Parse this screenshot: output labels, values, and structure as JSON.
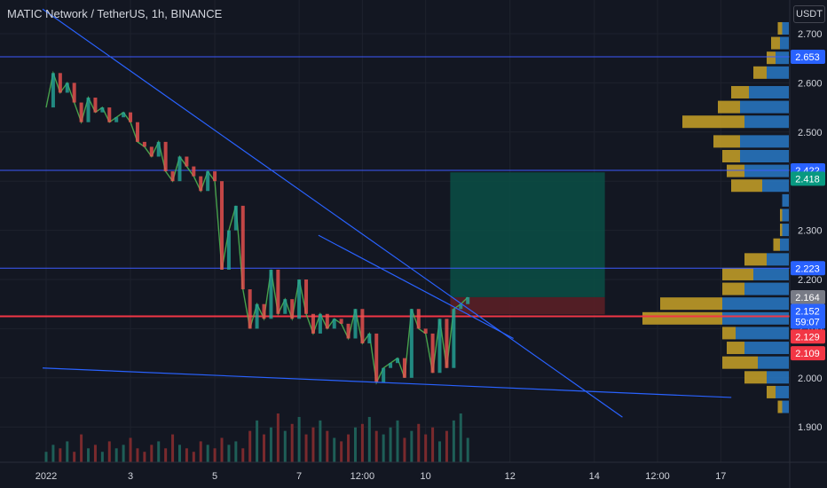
{
  "header": {
    "title": "MATIC Network / TetherUS, 1h, BINANCE",
    "unit": "USDT"
  },
  "colors": {
    "background": "#131722",
    "trendline": "#2962ff",
    "level_line": "#3d5afe",
    "poc_line": "#f23645",
    "volume_profile_up": "#2979c6",
    "volume_profile_down": "#c9a227",
    "position_target": "#0b4f45",
    "position_stop": "#5a1f26",
    "candle_up": "#26a69a",
    "candle_down": "#ef5350"
  },
  "chart_data": {
    "type": "line",
    "title": "MATIC Network / TetherUS, 1h, BINANCE",
    "ylim": [
      1.88,
      2.74
    ],
    "y_ticks": [
      "2.700",
      "2.600",
      "2.500",
      "2.400",
      "2.300",
      "2.200",
      "2.100",
      "2.000",
      "1.900"
    ],
    "y_tick_values": [
      2.7,
      2.6,
      2.5,
      2.4,
      2.3,
      2.2,
      2.1,
      2.0,
      1.9
    ],
    "x_ticks": [
      "2022",
      "3",
      "5",
      "7",
      "12:00",
      "10",
      "12",
      "14",
      "12:00",
      "17"
    ],
    "x_tick_hours": [
      0,
      48,
      96,
      144,
      180,
      216,
      264,
      312,
      348,
      384
    ],
    "price_series": {
      "hours": [
        0,
        4,
        8,
        12,
        16,
        20,
        24,
        28,
        32,
        36,
        40,
        44,
        48,
        52,
        56,
        60,
        64,
        68,
        72,
        76,
        80,
        84,
        88,
        92,
        96,
        100,
        104,
        108,
        112,
        116,
        120,
        124,
        128,
        132,
        136,
        140,
        144,
        148,
        152,
        156,
        160,
        164,
        168,
        172,
        176,
        180,
        184,
        188,
        192,
        196,
        200,
        204,
        208,
        212,
        216,
        220,
        224,
        228,
        232,
        236,
        240
      ],
      "close": [
        2.55,
        2.62,
        2.58,
        2.6,
        2.56,
        2.52,
        2.57,
        2.54,
        2.55,
        2.52,
        2.53,
        2.54,
        2.52,
        2.48,
        2.47,
        2.45,
        2.48,
        2.42,
        2.4,
        2.45,
        2.43,
        2.41,
        2.38,
        2.42,
        2.4,
        2.22,
        2.3,
        2.35,
        2.18,
        2.1,
        2.15,
        2.12,
        2.22,
        2.13,
        2.16,
        2.12,
        2.2,
        2.13,
        2.09,
        2.13,
        2.1,
        2.12,
        2.11,
        2.08,
        2.14,
        2.07,
        2.09,
        1.99,
        2.02,
        2.03,
        2.04,
        2.0,
        2.14,
        2.1,
        2.09,
        2.01,
        2.12,
        2.02,
        2.14,
        2.15,
        2.164
      ]
    },
    "horizontal_levels": [
      {
        "label": "2.653",
        "value": 2.653
      },
      {
        "label": "2.422",
        "value": 2.422
      },
      {
        "label": "2.223",
        "value": 2.223
      }
    ],
    "poc_level": {
      "value": 2.125
    },
    "price_tags": [
      {
        "label": "2.653",
        "value": 2.653,
        "color": "#2962ff"
      },
      {
        "label": "2.422",
        "value": 2.422,
        "color": "#2962ff"
      },
      {
        "label": "2.418",
        "value": 2.405,
        "color": "#089981"
      },
      {
        "label": "2.223",
        "value": 2.223,
        "color": "#2962ff"
      },
      {
        "label": "2.164",
        "value": 2.164,
        "color": "#787b86"
      },
      {
        "label": "2.152",
        "value": 2.136,
        "color": "#2962ff"
      },
      {
        "label": "59:07",
        "value": 2.114,
        "color": "#2962ff"
      },
      {
        "label": "2.129",
        "value": 2.084,
        "color": "#f23645"
      },
      {
        "label": "2.109",
        "value": 2.05,
        "color": "#f23645"
      }
    ],
    "trendlines": [
      {
        "from": {
          "hour": -2,
          "price": 2.75
        },
        "to": {
          "hour": 328,
          "price": 1.92
        }
      },
      {
        "from": {
          "hour": 155,
          "price": 2.29
        },
        "to": {
          "hour": 266,
          "price": 2.08
        }
      },
      {
        "from": {
          "hour": -2,
          "price": 2.02
        },
        "to": {
          "hour": 390,
          "price": 1.96
        }
      }
    ],
    "position": {
      "start_hour": 230,
      "end_hour": 318,
      "target": 2.418,
      "entry": 2.164,
      "stop": 2.129
    },
    "volume_profile": [
      {
        "price": 2.71,
        "up": 3,
        "down": 2
      },
      {
        "price": 2.68,
        "up": 4,
        "down": 4
      },
      {
        "price": 2.65,
        "up": 6,
        "down": 4
      },
      {
        "price": 2.62,
        "up": 10,
        "down": 6
      },
      {
        "price": 2.58,
        "up": 18,
        "down": 8
      },
      {
        "price": 2.55,
        "up": 22,
        "down": 10
      },
      {
        "price": 2.52,
        "up": 20,
        "down": 28
      },
      {
        "price": 2.48,
        "up": 22,
        "down": 12
      },
      {
        "price": 2.45,
        "up": 22,
        "down": 8
      },
      {
        "price": 2.42,
        "up": 20,
        "down": 8
      },
      {
        "price": 2.39,
        "up": 12,
        "down": 14
      },
      {
        "price": 2.36,
        "up": 3,
        "down": 0
      },
      {
        "price": 2.33,
        "up": 3,
        "down": 1
      },
      {
        "price": 2.3,
        "up": 3,
        "down": 1
      },
      {
        "price": 2.27,
        "up": 4,
        "down": 3
      },
      {
        "price": 2.24,
        "up": 10,
        "down": 10
      },
      {
        "price": 2.21,
        "up": 16,
        "down": 14
      },
      {
        "price": 2.18,
        "up": 20,
        "down": 10
      },
      {
        "price": 2.15,
        "up": 30,
        "down": 28
      },
      {
        "price": 2.12,
        "up": 30,
        "down": 36
      },
      {
        "price": 2.09,
        "up": 24,
        "down": 6
      },
      {
        "price": 2.06,
        "up": 20,
        "down": 8
      },
      {
        "price": 2.03,
        "up": 14,
        "down": 16
      },
      {
        "price": 2.0,
        "up": 10,
        "down": 10
      },
      {
        "price": 1.97,
        "up": 6,
        "down": 4
      },
      {
        "price": 1.94,
        "up": 3,
        "down": 2
      }
    ],
    "volume_bars": [
      3,
      5,
      4,
      6,
      3,
      8,
      4,
      5,
      3,
      6,
      4,
      5,
      7,
      4,
      3,
      5,
      6,
      4,
      8,
      5,
      4,
      3,
      6,
      5,
      4,
      7,
      5,
      6,
      4,
      9,
      12,
      8,
      10,
      14,
      9,
      11,
      13,
      8,
      10,
      12,
      9,
      7,
      6,
      8,
      10,
      11,
      13,
      9,
      8,
      10,
      12,
      7,
      9,
      11,
      8,
      10,
      6,
      9,
      12,
      14,
      7
    ]
  }
}
